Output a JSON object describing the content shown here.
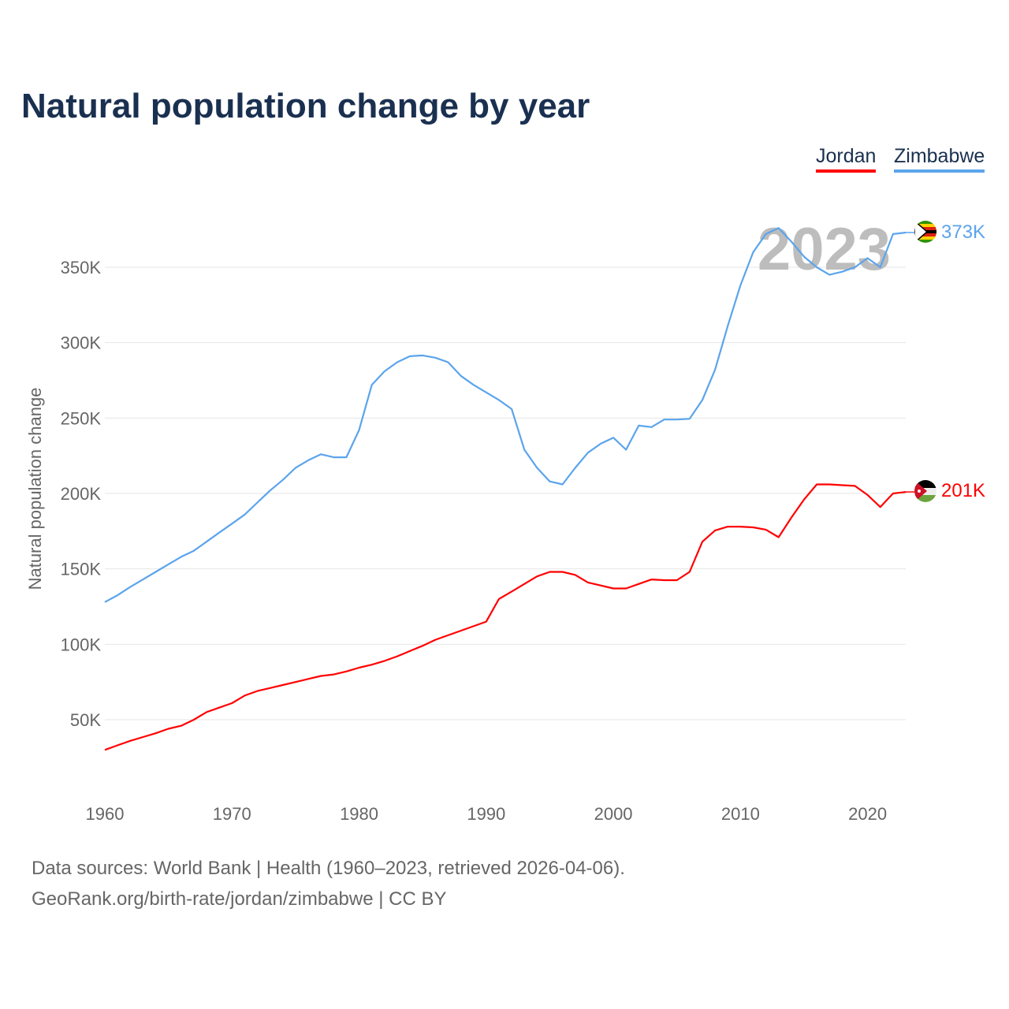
{
  "chart_data": {
    "type": "line",
    "title": "Natural population change by year",
    "ylabel": "Natural population change",
    "xlabel": "",
    "xlim": [
      1960,
      2023
    ],
    "ylim": [
      0,
      380000
    ],
    "x_ticks": [
      1960,
      1970,
      1980,
      1990,
      2000,
      2010,
      2020
    ],
    "y_ticks": [
      50000,
      100000,
      150000,
      200000,
      250000,
      300000,
      350000
    ],
    "y_tick_labels": [
      "50K",
      "100K",
      "150K",
      "200K",
      "250K",
      "300K",
      "350K"
    ],
    "x_tick_labels": [
      "1960",
      "1970",
      "1980",
      "1990",
      "2000",
      "2010",
      "2020"
    ],
    "year_watermark": "2023",
    "grid": true,
    "legend_placement": "top-right",
    "series": [
      {
        "name": "Jordan",
        "color": "#ff0000",
        "end_label": "201K",
        "values": [
          30,
          33,
          36,
          38.5,
          41,
          44,
          46,
          50,
          55,
          58,
          61,
          66,
          69,
          71,
          73,
          75,
          77,
          79,
          80,
          82,
          84.5,
          86.5,
          89,
          92,
          95.5,
          99,
          103,
          106,
          109,
          112,
          115,
          130,
          135,
          140,
          145,
          148,
          148,
          146,
          141,
          139,
          137,
          137,
          140,
          143,
          142.5,
          142.5,
          148,
          168,
          175.5,
          178,
          178,
          177.5,
          176,
          171,
          184,
          196,
          206,
          206,
          205.5,
          205,
          199,
          191,
          200,
          201
        ]
      },
      {
        "name": "Zimbabwe",
        "color": "#5ba4ec",
        "end_label": "373K",
        "values": [
          128,
          132.5,
          138,
          143,
          148,
          153,
          158,
          162,
          168,
          174,
          180,
          186,
          194,
          202,
          209,
          217,
          222,
          226,
          224,
          224,
          242,
          272,
          281,
          287,
          291,
          291.5,
          290,
          287,
          278,
          272,
          267,
          262,
          256,
          229,
          217,
          208,
          206,
          217,
          227,
          233,
          237,
          229,
          245,
          244,
          249,
          249,
          249.5,
          262,
          282,
          311,
          338,
          360,
          372,
          376,
          367,
          357,
          350,
          345,
          347,
          350,
          356,
          350,
          372,
          373
        ]
      }
    ],
    "value_unit": "thousands"
  },
  "footer": {
    "line1": "Data sources: World Bank | Health (1960–2023, retrieved 2026-04-06).",
    "line2": "GeoRank.org/birth-rate/jordan/zimbabwe | CC BY"
  }
}
